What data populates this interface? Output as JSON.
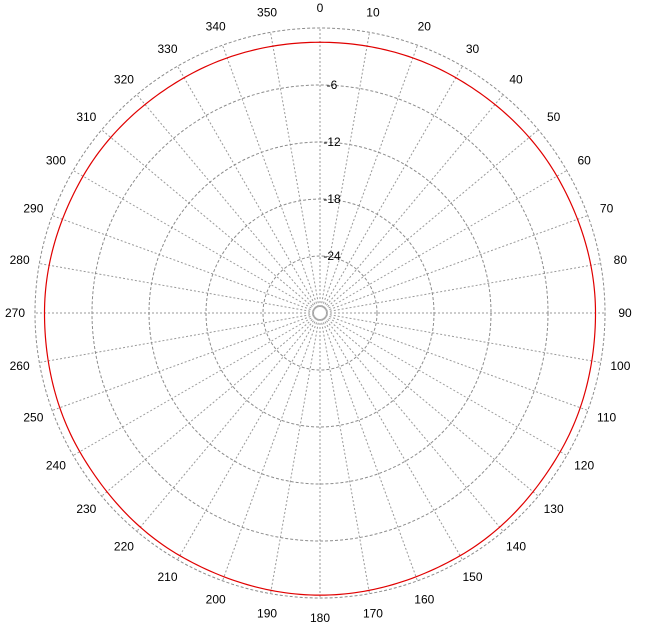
{
  "chart_data": {
    "type": "polar-line",
    "title": "",
    "angle_unit": "degrees",
    "angle_direction": "clockwise",
    "angle_zero": "top",
    "angle_ticks": [
      0,
      10,
      20,
      30,
      40,
      50,
      60,
      70,
      80,
      90,
      100,
      110,
      120,
      130,
      140,
      150,
      160,
      170,
      180,
      190,
      200,
      210,
      220,
      230,
      240,
      250,
      260,
      270,
      280,
      290,
      300,
      310,
      320,
      330,
      340,
      350
    ],
    "radial_range": [
      -30,
      0
    ],
    "radial_ticks": [
      -6,
      -12,
      -18,
      -24
    ],
    "radial_tick_labels": [
      "-6",
      "-12",
      "-18",
      "-24"
    ],
    "grid": true,
    "series": [
      {
        "color": "#e00000",
        "angles": [
          0,
          30,
          60,
          90,
          120,
          150,
          180,
          210,
          240,
          270,
          300,
          330
        ],
        "values": [
          -1.5,
          -1.4,
          -1.2,
          -1.0,
          -0.8,
          -0.5,
          -0.3,
          -0.5,
          -0.8,
          -1.0,
          -1.2,
          -1.4
        ]
      }
    ]
  }
}
